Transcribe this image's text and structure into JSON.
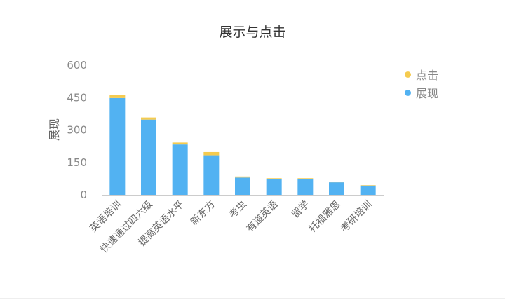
{
  "chart_data": {
    "type": "bar",
    "stacked": true,
    "title": "展示与点击",
    "xlabel": "",
    "ylabel": "展现",
    "ylim": [
      0,
      600
    ],
    "yticks": [
      0,
      150,
      300,
      450,
      600
    ],
    "grid": false,
    "legend_position": "top-right",
    "categories": [
      "英语培训",
      "快速通过四六级",
      "提高英语水平",
      "新东方",
      "考虫",
      "有道英语",
      "留学",
      "托福雅思",
      "考研培训"
    ],
    "series": [
      {
        "name": "展现",
        "color": "#52b2f2",
        "values": [
          448,
          348,
          233,
          183,
          80,
          72,
          72,
          58,
          43
        ]
      },
      {
        "name": "点击",
        "color": "#f5cb4f",
        "values": [
          14,
          10,
          9,
          15,
          5,
          5,
          5,
          3,
          2
        ]
      }
    ]
  }
}
